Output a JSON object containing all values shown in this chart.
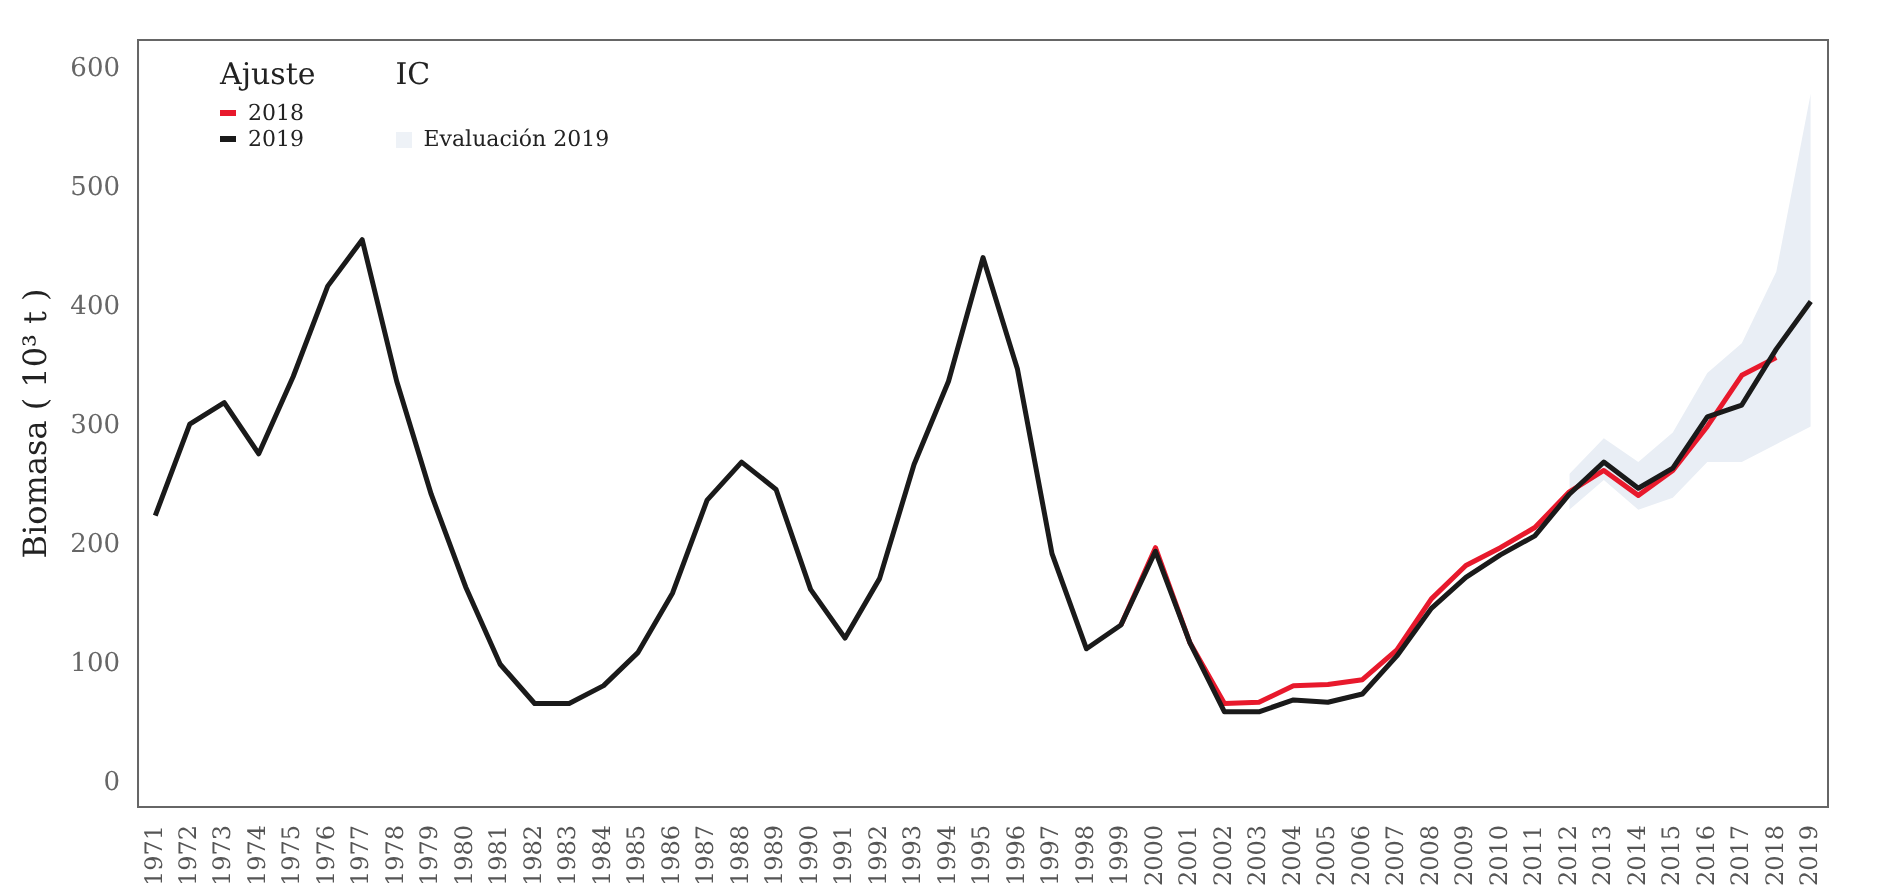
{
  "chart_data": {
    "type": "line",
    "ylabel": "Biomasa ( 10³ t )",
    "legend_title": "Ajuste",
    "legend": "top left",
    "grid": false,
    "marker": "none",
    "line_style": "solid",
    "categories": [
      "1971",
      "1972",
      "1973",
      "1974",
      "1975",
      "1976",
      "1977",
      "1978",
      "1979",
      "1980",
      "1981",
      "1982",
      "1983",
      "1984",
      "1985",
      "1986",
      "1987",
      "1988",
      "1989",
      "1990",
      "1991",
      "1992",
      "1993",
      "1994",
      "1995",
      "1996",
      "1997",
      "1998",
      "1999",
      "2000",
      "2001",
      "2002",
      "2003",
      "2004",
      "2005",
      "2006",
      "2007",
      "2008",
      "2009",
      "2010",
      "2011",
      "2012",
      "2013",
      "2014",
      "2015",
      "2016",
      "2017",
      "2018",
      "2019"
    ],
    "ylim": [
      -20,
      625
    ],
    "yticks": [
      0,
      100,
      200,
      300,
      400,
      500,
      600
    ],
    "annotations": [
      "IC",
      "Evaluación 2019"
    ],
    "series": [
      {
        "name": "2018",
        "color": "#e8192c",
        "values": [
          null,
          null,
          null,
          null,
          null,
          null,
          null,
          null,
          null,
          null,
          null,
          null,
          null,
          null,
          null,
          null,
          null,
          null,
          null,
          null,
          null,
          null,
          null,
          null,
          null,
          null,
          null,
          null,
          133,
          198,
          118,
          67,
          68,
          82,
          83,
          87,
          112,
          155,
          183,
          198,
          215,
          245,
          263,
          242,
          263,
          300,
          343,
          358,
          null
        ]
      },
      {
        "name": "2019",
        "color": "#1a1a1a",
        "values": [
          225,
          302,
          320,
          277,
          342,
          418,
          457,
          338,
          243,
          165,
          100,
          67,
          67,
          82,
          110,
          160,
          238,
          270,
          247,
          163,
          122,
          172,
          268,
          338,
          442,
          348,
          193,
          113,
          133,
          195,
          118,
          60,
          60,
          70,
          68,
          75,
          107,
          147,
          173,
          192,
          208,
          243,
          270,
          248,
          265,
          308,
          318,
          365,
          405
        ],
        "lower": [
          null,
          null,
          null,
          null,
          null,
          null,
          null,
          null,
          null,
          null,
          null,
          null,
          null,
          null,
          null,
          null,
          null,
          null,
          null,
          null,
          null,
          null,
          null,
          null,
          null,
          null,
          null,
          null,
          null,
          null,
          null,
          null,
          null,
          null,
          null,
          null,
          null,
          null,
          null,
          null,
          null,
          230,
          255,
          230,
          240,
          270,
          270,
          285,
          300
        ],
        "upper": [
          null,
          null,
          null,
          null,
          null,
          null,
          null,
          null,
          null,
          null,
          null,
          null,
          null,
          null,
          null,
          null,
          null,
          null,
          null,
          null,
          null,
          null,
          null,
          null,
          null,
          null,
          null,
          null,
          null,
          null,
          null,
          null,
          null,
          null,
          null,
          null,
          null,
          null,
          null,
          null,
          null,
          260,
          290,
          270,
          295,
          345,
          370,
          430,
          580
        ]
      }
    ]
  }
}
